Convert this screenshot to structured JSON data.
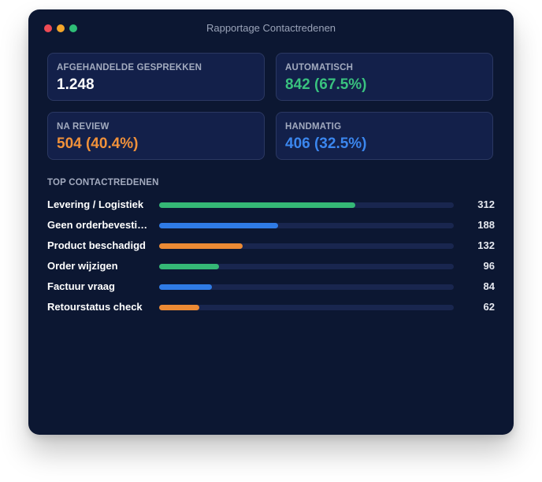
{
  "window": {
    "title": "Rapportage Contactredenen"
  },
  "stats": [
    {
      "label": "AFGEHANDELDE GESPREKKEN",
      "value": "1.248",
      "color": "#ffffff"
    },
    {
      "label": "AUTOMATISCH",
      "value": "842 (67.5%)",
      "color": "#39c17f"
    },
    {
      "label": "NA REVIEW",
      "value": "504 (40.4%)",
      "color": "#f0913a"
    },
    {
      "label": "HANDMATIG",
      "value": "406 (32.5%)",
      "color": "#3b86ee"
    }
  ],
  "top_reasons": {
    "title": "TOP CONTACTREDENEN",
    "items": [
      {
        "label": "Levering / Logistiek",
        "value": "312",
        "fraction": 0.667,
        "color": "#35b876"
      },
      {
        "label": "Geen orderbevestiging",
        "value": "188",
        "fraction": 0.404,
        "color": "#2f7be5"
      },
      {
        "label": "Product beschadigd",
        "value": "132",
        "fraction": 0.283,
        "color": "#ec8a34"
      },
      {
        "label": "Order wijzigen",
        "value": "96",
        "fraction": 0.203,
        "color": "#35b876"
      },
      {
        "label": "Factuur vraag",
        "value": "84",
        "fraction": 0.179,
        "color": "#2f7be5"
      },
      {
        "label": "Retourstatus check",
        "value": "62",
        "fraction": 0.136,
        "color": "#ec8a34"
      }
    ]
  }
}
